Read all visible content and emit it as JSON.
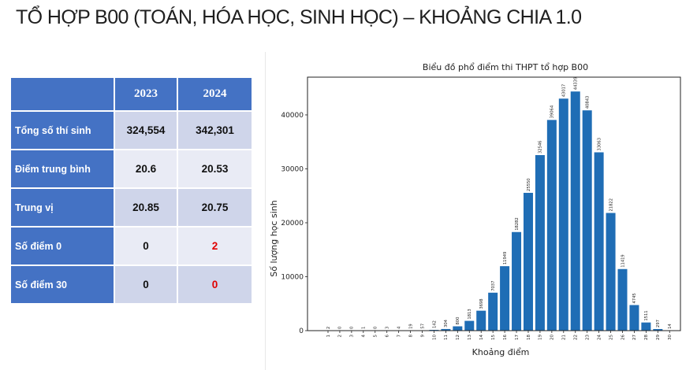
{
  "slide_title": "TỔ HỢP B00 (TOÁN, HÓA HỌC, SINH HỌC) – KHOẢNG CHIA 1.0",
  "table": {
    "headers": [
      "",
      "2023",
      "2024"
    ],
    "rows": [
      {
        "label": "Tổng số thí sinh",
        "v2023": "324,554",
        "v2024": "342,301"
      },
      {
        "label": "Điểm trung bình",
        "v2023": "20.6",
        "v2024": "20.53"
      },
      {
        "label": "Trung vị",
        "v2023": "20.85",
        "v2024": "20.75"
      },
      {
        "label": "Số điểm 0",
        "v2023": "0",
        "v2024": "2"
      },
      {
        "label": "Số điểm 30",
        "v2023": "0",
        "v2024": "0"
      }
    ],
    "highlight_color": "#e00000"
  },
  "chart_data": {
    "type": "bar",
    "title": "Biểu đồ phổ điểm thi THPT tổ hợp B00",
    "xlabel": "Khoảng điểm",
    "ylabel": "Số lượng học sinh",
    "categories": [
      "1",
      "2",
      "3",
      "4",
      "5",
      "6",
      "7",
      "8",
      "9",
      "10",
      "11",
      "12",
      "13",
      "14",
      "15",
      "16",
      "17",
      "18",
      "19",
      "20",
      "21",
      "22",
      "23",
      "24",
      "25",
      "26",
      "27",
      "28",
      "29",
      "30"
    ],
    "values": [
      2,
      0,
      0,
      1,
      0,
      3,
      4,
      19,
      57,
      142,
      304,
      800,
      1813,
      3698,
      7037,
      11949,
      18282,
      25550,
      32546,
      39064,
      43017,
      44339,
      40843,
      33063,
      21822,
      11419,
      4745,
      1511,
      297,
      14
    ],
    "yticks": [
      0,
      10000,
      20000,
      30000,
      40000
    ],
    "ylim": [
      0,
      47000
    ],
    "bar_color": "#1f6db5",
    "grid": false,
    "legend": "none"
  }
}
